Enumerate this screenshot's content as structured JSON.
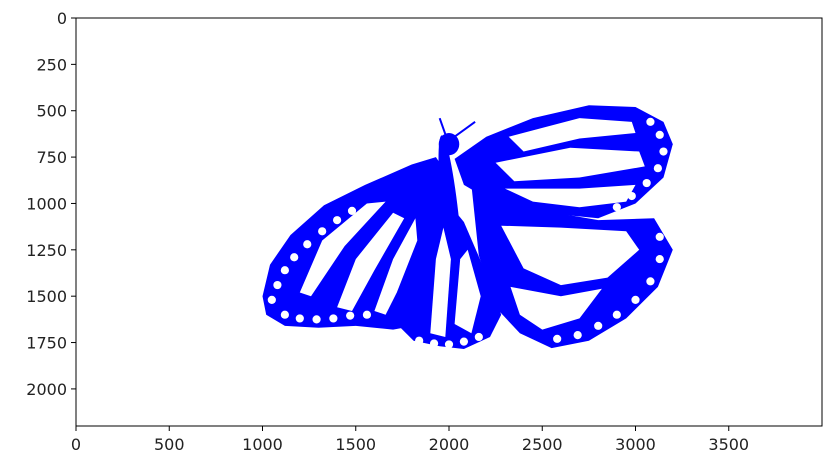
{
  "chart_data": {
    "type": "image",
    "title": "",
    "xlabel": "",
    "ylabel": "",
    "xlim": [
      0,
      4000
    ],
    "ylim": [
      2200,
      0
    ],
    "y_inverted": true,
    "grid": false,
    "x_ticks": [
      0,
      500,
      1000,
      1500,
      2000,
      2500,
      3000,
      3500
    ],
    "y_ticks": [
      0,
      250,
      500,
      750,
      1000,
      1250,
      1500,
      1750,
      2000
    ],
    "x_tick_labels": [
      "0",
      "500",
      "1000",
      "1500",
      "2000",
      "2500",
      "3000",
      "3500"
    ],
    "y_tick_labels": [
      "0",
      "250",
      "500",
      "750",
      "1000",
      "1250",
      "1500",
      "1750",
      "2000"
    ],
    "image_content": "butterfly-silhouette",
    "image_color": "#0000ff",
    "background_color": "#ffffff"
  }
}
